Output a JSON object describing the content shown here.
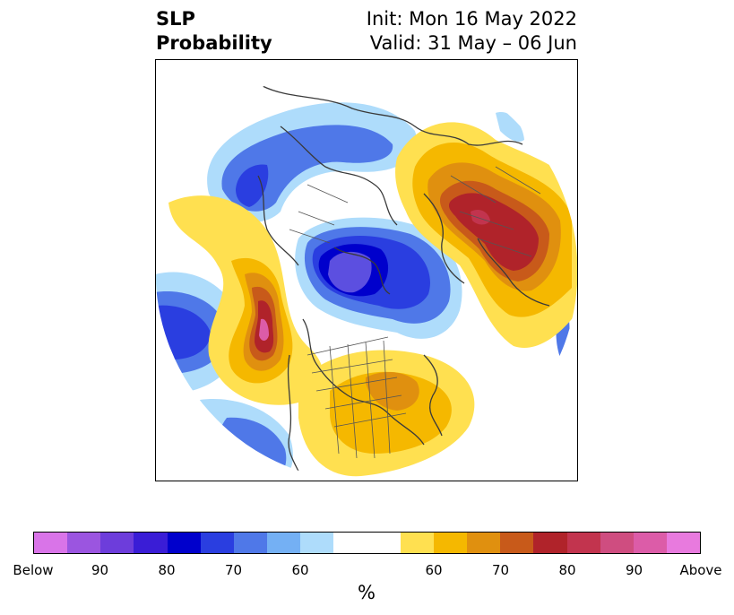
{
  "title": {
    "left_line1": "SLP",
    "left_line2": "Probability",
    "right_line1": "Init: Mon 16 May 2022",
    "right_line2": "Valid: 31 May – 06 Jun"
  },
  "map": {
    "projection": "polar-stereographic (North Pole)",
    "region": "Northern Hemisphere",
    "field": "SLP probability",
    "colors": {
      "below_90": "#5c4fe0",
      "below_80": "#0000cc",
      "below_70": "#2a3ee0",
      "below_60": "#74b0f4",
      "near_normal": "#ffffff",
      "above_60": "#ffe050",
      "above_70": "#e0900f",
      "above_80": "#b0232a",
      "above_90": "#dc5ca8"
    }
  },
  "colorbar": {
    "colors": [
      "#d974e8",
      "#9b55e0",
      "#6d3ddb",
      "#3a1dd6",
      "#0000cc",
      "#2a3ee0",
      "#4f78e8",
      "#74b0f4",
      "#aedcfb",
      "#ffffff",
      "#ffffff",
      "#ffe050",
      "#f5b800",
      "#e0900f",
      "#c85a1a",
      "#b0232a",
      "#c2344e",
      "#cf4d80",
      "#dc5ca8",
      "#e87ade"
    ],
    "tick_labels": [
      "Below",
      "90",
      "80",
      "70",
      "60",
      "60",
      "70",
      "80",
      "90",
      "Above"
    ],
    "unit": "%"
  }
}
